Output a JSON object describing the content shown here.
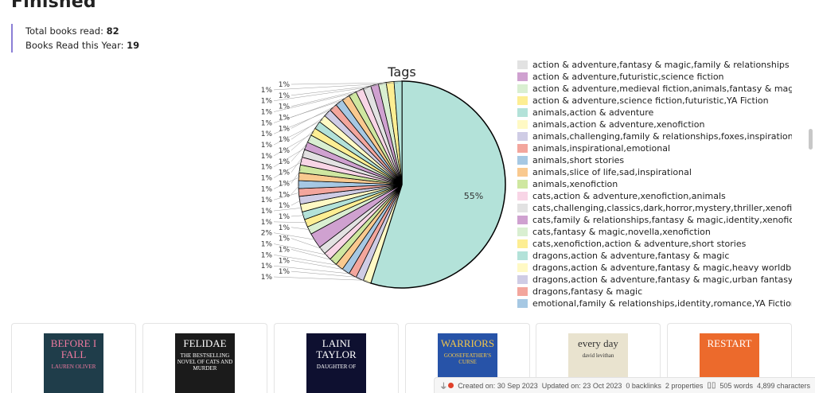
{
  "page": {
    "heading": "Finished",
    "stats": [
      {
        "label": "Total books read:",
        "value": "82"
      },
      {
        "label": "Books Read this Year:",
        "value": "19"
      }
    ]
  },
  "palette": [
    "#b3e2d9",
    "#fff9c4",
    "#cfcce5",
    "#f3a69d",
    "#a6c8e3",
    "#f9c98f",
    "#cfe7a0",
    "#f8d5e6",
    "#e2e2e2",
    "#cfa1d0",
    "#d9efd1",
    "#fdee93"
  ],
  "chart_data": {
    "type": "pie",
    "title": "Tags",
    "start": "top",
    "direction": "clockwise",
    "values": [
      45,
      1,
      1,
      1,
      1,
      1,
      1,
      1,
      1,
      2,
      1,
      1,
      1,
      1,
      1,
      1,
      1,
      1,
      1,
      1,
      1,
      1,
      1,
      1,
      1,
      1,
      1,
      1,
      1,
      1,
      1,
      1,
      1,
      1,
      1,
      1,
      1
    ],
    "legend_placement": "right",
    "legend_items": [
      "action & adventure,fantasy & magic,family & relationships",
      "action & adventure,futuristic,science fiction",
      "action & adventure,medieval fiction,animals,fantasy & magic",
      "action & adventure,science fiction,futuristic,YA Fiction",
      "animals,action & adventure",
      "animals,action & adventure,xenofiction",
      "animals,challenging,family & relationships,foxes,inspirational,romance",
      "animals,inspirational,emotional",
      "animals,short stories",
      "animals,slice of life,sad,inspirational",
      "animals,xenofiction",
      "cats,action & adventure,xenofiction,animals",
      "cats,challenging,classics,dark,horror,mystery,thriller,xenofiction",
      "cats,family & relationships,fantasy & magic,identity,xenofiction",
      "cats,fantasy & magic,novella,xenofiction",
      "cats,xenofiction,action & adventure,short stories",
      "dragons,action & adventure,fantasy & magic",
      "dragons,action & adventure,fantasy & magic,heavy worldbuilding",
      "dragons,action & adventure,fantasy & magic,urban fantasy",
      "dragons,fantasy & magic",
      "emotional,family & relationships,identity,romance,YA Fiction"
    ]
  },
  "books": [
    {
      "title": "BEFORE I FALL",
      "subtitle": "LAUREN OLIVER",
      "bg": "#1f3d4a",
      "fg": "#f07aa0"
    },
    {
      "title": "FELIDAE",
      "subtitle": "THE BESTSELLING NOVEL OF CATS AND MURDER",
      "bg": "#1b1b1b",
      "fg": "#ffffff"
    },
    {
      "title": "LAINI TAYLOR",
      "subtitle": "DAUGHTER OF",
      "bg": "#0e1030",
      "fg": "#ffffff"
    },
    {
      "title": "WARRIORS",
      "subtitle": "GOOSEFEATHER'S CURSE",
      "bg": "#2753a8",
      "fg": "#f3c64a"
    },
    {
      "title": "every day",
      "subtitle": "david levithan",
      "bg": "#e9e3cf",
      "fg": "#333333"
    },
    {
      "title": "RESTART",
      "subtitle": "",
      "bg": "#ec6a2c",
      "fg": "#ffffff"
    }
  ],
  "status": {
    "created": "Created on: 30 Sep 2023",
    "updated": "Updated on: 23 Oct 2023",
    "backlinks": "0 backlinks",
    "properties": "2 properties",
    "words": "505 words",
    "characters": "4,899 characters"
  }
}
